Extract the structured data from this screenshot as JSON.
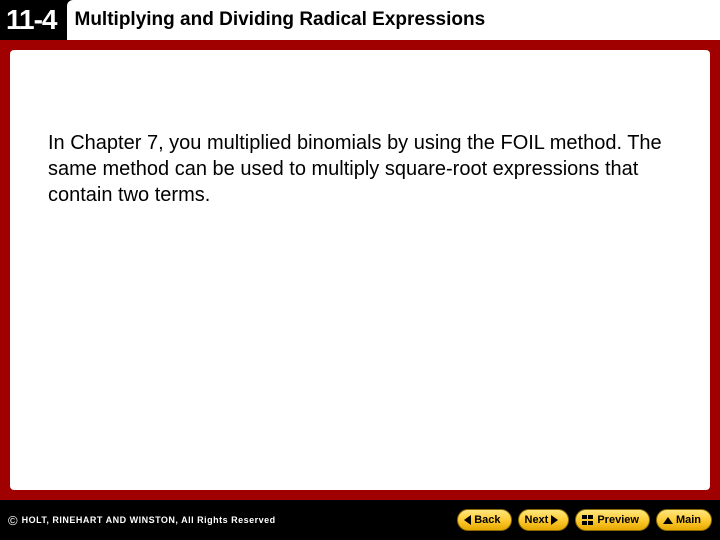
{
  "header": {
    "section_number": "11-4",
    "section_title": "Multiplying and Dividing Radical Expressions"
  },
  "content": {
    "body_text": "In Chapter 7, you multiplied binomials by using the FOIL method. The same method can be used to multiply square-root expressions that contain two terms."
  },
  "footer": {
    "copyright": "HOLT, RINEHART AND WINSTON, All Rights Reserved",
    "nav": {
      "back": "Back",
      "next": "Next",
      "preview": "Preview",
      "main": "Main"
    }
  },
  "colors": {
    "header_bg": "#000000",
    "frame_bg": "#a00000",
    "content_bg": "#ffffff",
    "button_gradient_top": "#ffe680",
    "button_gradient_bottom": "#e6a800",
    "text": "#000000",
    "header_text": "#ffffff"
  }
}
